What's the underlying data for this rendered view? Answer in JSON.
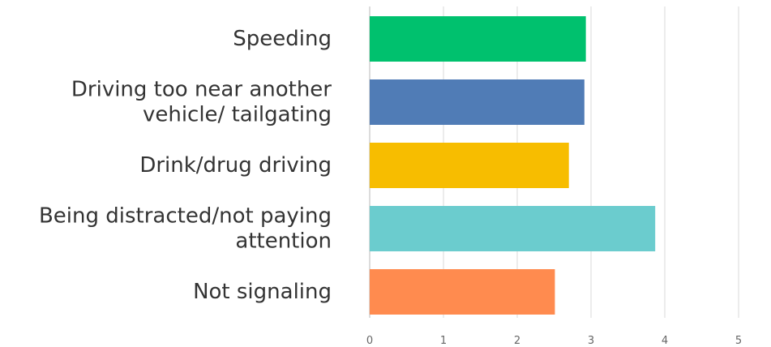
{
  "chart_data": {
    "type": "bar",
    "orientation": "horizontal",
    "categories": [
      [
        "Speeding"
      ],
      [
        "Driving too near another",
        "vehicle/ tailgating"
      ],
      [
        "Drink/drug driving"
      ],
      [
        "Being distracted/not paying",
        "attention"
      ],
      [
        "Not signaling"
      ]
    ],
    "values": [
      2.93,
      2.91,
      2.7,
      3.87,
      2.51
    ],
    "bar_colors": [
      "#00c16e",
      "#507cb6",
      "#f7bd00",
      "#6bccce",
      "#ff8b4f"
    ],
    "xlim": [
      0,
      5
    ],
    "xticks": [
      "0",
      "1",
      "2",
      "3",
      "4",
      "5"
    ],
    "grid": true,
    "title": "",
    "xlabel": "",
    "ylabel": ""
  }
}
